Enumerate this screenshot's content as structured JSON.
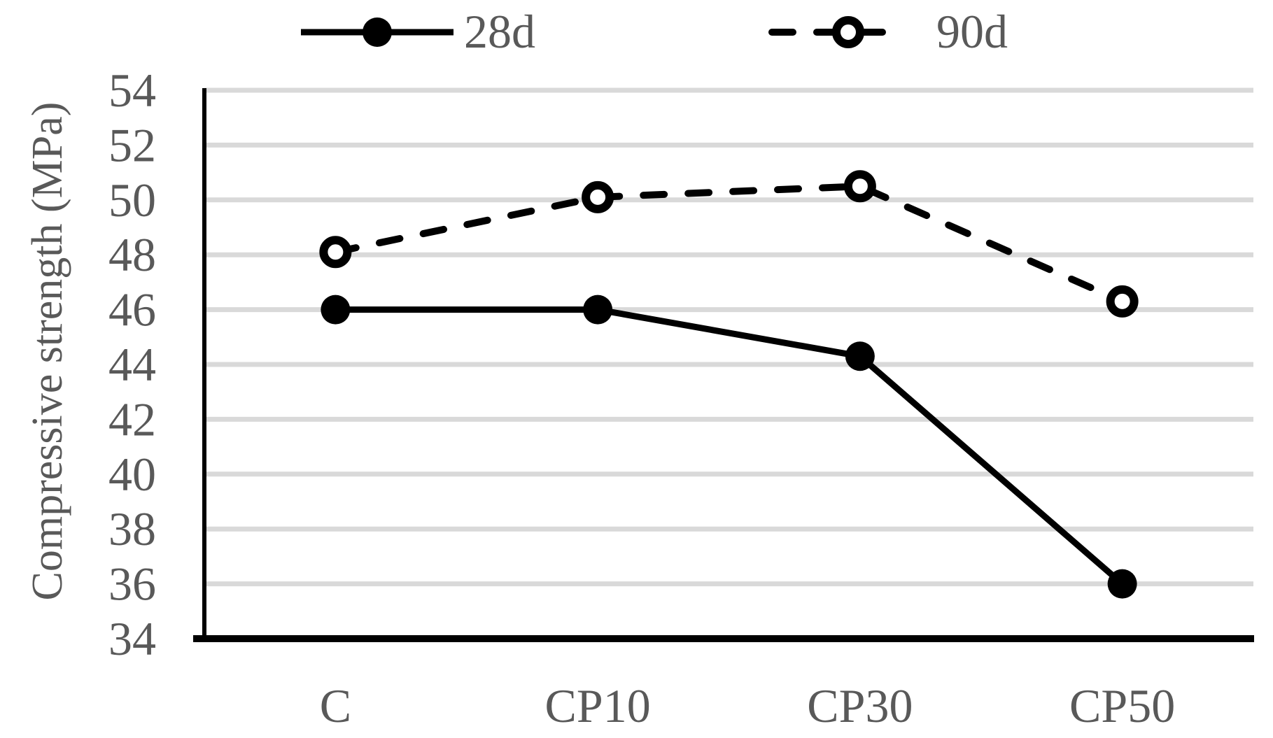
{
  "chart_data": {
    "type": "line",
    "categories": [
      "C",
      "CP10",
      "CP30",
      "CP50"
    ],
    "series": [
      {
        "name": "28d",
        "values": [
          46.0,
          46.0,
          44.3,
          36.0
        ],
        "line_style": "solid",
        "marker": "filled-circle"
      },
      {
        "name": "90d",
        "values": [
          48.1,
          50.1,
          50.5,
          46.3
        ],
        "line_style": "dashed",
        "marker": "open-circle"
      }
    ],
    "title": "",
    "xlabel": "",
    "ylabel": "Compressive strength (MPa)",
    "ylim": [
      34,
      54
    ],
    "ytick_step": 2,
    "yticks": [
      34,
      36,
      38,
      40,
      42,
      44,
      46,
      48,
      50,
      52,
      54
    ],
    "grid": "horizontal",
    "legend_position": "top",
    "colors": {
      "series": "#000000",
      "text": "#595959",
      "gridline": "#d9d9d9",
      "background": "#ffffff"
    }
  }
}
